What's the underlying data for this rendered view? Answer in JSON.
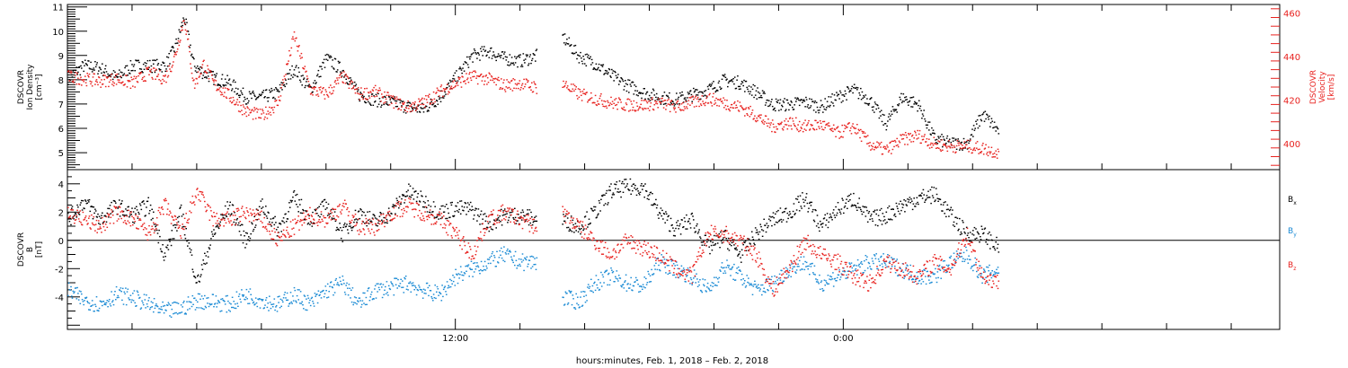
{
  "colors": {
    "black": "#000000",
    "red": "#e8221f",
    "blue": "#1a8ad4"
  },
  "xaxis": {
    "label": "hours:minutes, Feb.  1, 2018 – Feb.  2, 2018",
    "major_ticks": [
      {
        "hour": 12,
        "label": "12:00"
      },
      {
        "hour": 24,
        "label": "0:00"
      }
    ],
    "minor_tick_hours": [
      0,
      2,
      4,
      6,
      8,
      10,
      12,
      14,
      16,
      18,
      20,
      22,
      24,
      26,
      28,
      30,
      32,
      34,
      36
    ],
    "range_hours": [
      0,
      37.5
    ]
  },
  "chart_data": [
    {
      "type": "scatter",
      "panel": "top",
      "ylabel": [
        "DSCOVR",
        "Ion Density",
        "[cm⁻³]"
      ],
      "ylim": [
        4.3,
        11.1
      ],
      "yticks": [
        "5",
        "6",
        "7",
        "8",
        "9",
        "10",
        "11"
      ],
      "ylabel_right": [
        "DSCOVR",
        "Velocity",
        "[km/s]"
      ],
      "ylim_right": [
        388,
        464
      ],
      "yticks_right": [
        "400",
        "420",
        "440",
        "460"
      ],
      "series": [
        {
          "axis": "left",
          "color": "black",
          "segments": [
            {
              "x": [
                0,
                0.5,
                1,
                1.5,
                2,
                2.5,
                3,
                3.3,
                3.6,
                3.9,
                4.2,
                4.5,
                5,
                5.5,
                6,
                6.5,
                7,
                7.5,
                8,
                8.5,
                9,
                9.5,
                10,
                10.5,
                11,
                11.5,
                12,
                12.5,
                13,
                13.5,
                14,
                14.5
              ],
              "y": [
                8.1,
                8.6,
                8.5,
                8.1,
                8.6,
                8.6,
                8.6,
                9.3,
                10.6,
                8.6,
                8.3,
                8.1,
                7.9,
                7.3,
                7.3,
                7.5,
                8.5,
                7.6,
                8.9,
                8.4,
                7.4,
                7.2,
                7.1,
                6.9,
                6.8,
                7.3,
                8.1,
                9.0,
                9.2,
                8.9,
                8.8,
                9.0
              ]
            },
            {
              "x": [
                15.3,
                15.8,
                16.3,
                16.8,
                17.3,
                17.8,
                18.3,
                18.8,
                19.3,
                19.8,
                20.3,
                20.8,
                21.3,
                21.8,
                22.3,
                22.8,
                23.3,
                23.8,
                24.3,
                24.8,
                25.3,
                25.8,
                26.3,
                26.8,
                27.3,
                27.8,
                28.3,
                28.8
              ],
              "y": [
                9.8,
                9.0,
                8.7,
                8.2,
                7.8,
                7.5,
                7.3,
                7.2,
                7.4,
                7.6,
                8.0,
                7.9,
                7.5,
                7.0,
                7.0,
                7.1,
                6.9,
                7.3,
                7.6,
                7.2,
                6.2,
                7.3,
                7.0,
                5.6,
                5.4,
                5.4,
                6.6,
                5.9
              ]
            }
          ]
        },
        {
          "axis": "right",
          "color": "red",
          "segments": [
            {
              "x": [
                0,
                0.5,
                1,
                1.5,
                2,
                2.5,
                3,
                3.3,
                3.6,
                3.9,
                4.2,
                4.5,
                5,
                5.5,
                6,
                6.5,
                7,
                7.5,
                8,
                8.5,
                9,
                9.5,
                10,
                10.5,
                11,
                11.5,
                12,
                12.5,
                13,
                13.5,
                14,
                14.5
              ],
              "y": [
                431,
                430,
                429,
                430,
                428,
                433,
                430,
                440,
                458,
                427,
                437,
                428,
                422,
                415,
                413,
                419,
                450,
                425,
                423,
                431,
                423,
                424,
                420,
                417,
                419,
                424,
                428,
                431,
                430,
                427,
                428,
                426
              ]
            },
            {
              "x": [
                15.3,
                15.8,
                16.3,
                16.8,
                17.3,
                17.8,
                18.3,
                18.8,
                19.3,
                19.8,
                20.3,
                20.8,
                21.3,
                21.8,
                22.3,
                22.8,
                23.3,
                23.8,
                24.3,
                24.8,
                25.3,
                25.8,
                26.3,
                26.8,
                27.3,
                27.8,
                28.3,
                28.8
              ],
              "y": [
                428,
                423,
                421,
                419,
                418,
                418,
                419,
                417,
                419,
                421,
                419,
                417,
                413,
                408,
                410,
                408,
                409,
                405,
                408,
                400,
                397,
                402,
                404,
                400,
                399,
                399,
                398,
                396
              ]
            }
          ]
        }
      ]
    },
    {
      "type": "scatter",
      "panel": "bottom",
      "ylabel": [
        "DSCOVR",
        "B",
        "[nT]"
      ],
      "ylim": [
        -6.3,
        5.0
      ],
      "yticks": [
        "-4",
        "-2",
        "0",
        "2",
        "4"
      ],
      "legend_placement": "right",
      "series": [
        {
          "name": "Bx",
          "color": "black",
          "segments": [
            {
              "x": [
                0,
                0.5,
                1,
                1.5,
                2,
                2.5,
                3,
                3.5,
                4,
                4.5,
                5,
                5.5,
                6,
                6.5,
                7,
                7.5,
                8,
                8.5,
                9,
                9.5,
                10,
                10.5,
                11,
                11.5,
                12,
                12.5,
                13,
                13.5,
                14,
                14.5
              ],
              "y": [
                1.5,
                2.8,
                1.5,
                2.5,
                1.8,
                2.5,
                -1.0,
                2.0,
                -3.0,
                0.5,
                2.5,
                0.0,
                2.5,
                0.8,
                3.0,
                1.5,
                2.5,
                0.5,
                2.0,
                1.3,
                2.0,
                3.5,
                2.8,
                2.0,
                2.3,
                2.2,
                1.2,
                1.8,
                1.8,
                1.5
              ]
            },
            {
              "x": [
                15.3,
                15.8,
                16.3,
                16.8,
                17.3,
                17.8,
                18.3,
                18.8,
                19.3,
                19.8,
                20.3,
                20.8,
                21.3,
                21.8,
                22.3,
                22.8,
                23.3,
                23.8,
                24.3,
                24.8,
                25.3,
                25.8,
                26.3,
                26.8,
                27.3,
                27.8,
                28.3,
                28.8
              ],
              "y": [
                1.5,
                1.0,
                2.0,
                3.5,
                3.8,
                3.8,
                2.0,
                0.8,
                1.5,
                -0.5,
                0.3,
                -1.0,
                0.5,
                1.5,
                2.0,
                3.0,
                1.0,
                2.2,
                3.0,
                1.5,
                1.8,
                2.5,
                3.0,
                3.3,
                1.8,
                0.5,
                0.5,
                -0.5
              ]
            }
          ]
        },
        {
          "name": "By",
          "color": "blue",
          "segments": [
            {
              "x": [
                0,
                0.5,
                1,
                1.5,
                2,
                2.5,
                3,
                3.5,
                4,
                4.5,
                5,
                5.5,
                6,
                6.5,
                7,
                7.5,
                8,
                8.5,
                9,
                9.5,
                10,
                10.5,
                11,
                11.5,
                12,
                12.5,
                13,
                13.5,
                14,
                14.5
              ],
              "y": [
                -3.5,
                -4.2,
                -4.5,
                -3.8,
                -4.0,
                -4.5,
                -5.0,
                -4.8,
                -4.2,
                -4.3,
                -4.5,
                -3.8,
                -4.2,
                -4.5,
                -3.8,
                -4.5,
                -3.5,
                -3.0,
                -4.5,
                -3.5,
                -3.3,
                -3.0,
                -3.5,
                -3.8,
                -2.5,
                -2.0,
                -1.5,
                -1.0,
                -1.5,
                -1.5
              ]
            },
            {
              "x": [
                15.3,
                15.8,
                16.3,
                16.8,
                17.3,
                17.8,
                18.3,
                18.8,
                19.3,
                19.8,
                20.3,
                20.8,
                21.3,
                21.8,
                22.3,
                22.8,
                23.3,
                23.8,
                24.3,
                24.8,
                25.3,
                25.8,
                26.3,
                26.8,
                27.3,
                27.8,
                28.3,
                28.8
              ],
              "y": [
                -4.0,
                -4.3,
                -3.0,
                -2.5,
                -3.0,
                -3.2,
                -1.5,
                -2.0,
                -2.5,
                -3.5,
                -1.8,
                -2.5,
                -3.5,
                -3.0,
                -2.0,
                -1.5,
                -3.0,
                -2.5,
                -2.0,
                -1.5,
                -1.5,
                -2.0,
                -2.5,
                -2.5,
                -1.5,
                -1.0,
                -2.5,
                -2.0
              ]
            }
          ]
        },
        {
          "name": "Bz",
          "color": "red",
          "segments": [
            {
              "x": [
                0,
                0.5,
                1,
                1.5,
                2,
                2.5,
                3,
                3.5,
                4,
                4.5,
                5,
                5.5,
                6,
                6.5,
                7,
                7.5,
                8,
                8.5,
                9,
                9.5,
                10,
                10.5,
                11,
                11.5,
                12,
                12.5,
                13,
                13.5,
                14,
                14.5
              ],
              "y": [
                2.0,
                1.5,
                1.0,
                2.0,
                1.5,
                0.5,
                2.5,
                0.5,
                3.5,
                1.5,
                1.5,
                2.0,
                1.5,
                0.0,
                1.0,
                1.8,
                1.5,
                2.5,
                1.0,
                1.0,
                2.0,
                2.5,
                2.0,
                1.5,
                0.5,
                -1.0,
                1.5,
                2.0,
                1.5,
                1.0
              ]
            },
            {
              "x": [
                15.3,
                15.8,
                16.3,
                16.8,
                17.3,
                17.8,
                18.3,
                18.8,
                19.3,
                19.8,
                20.3,
                20.8,
                21.3,
                21.8,
                22.3,
                22.8,
                23.3,
                23.8,
                24.3,
                24.8,
                25.3,
                25.8,
                26.3,
                26.8,
                27.3,
                27.8,
                28.3,
                28.8
              ],
              "y": [
                2.0,
                1.0,
                0.0,
                -1.0,
                0.0,
                -0.5,
                -1.0,
                -2.0,
                -2.5,
                0.5,
                0.5,
                0.0,
                -1.0,
                -3.5,
                -2.0,
                0.0,
                -1.0,
                -1.5,
                -2.5,
                -3.0,
                -1.5,
                -2.0,
                -2.5,
                -1.5,
                -2.0,
                0.5,
                -2.5,
                -3.0
              ]
            }
          ]
        }
      ]
    }
  ]
}
